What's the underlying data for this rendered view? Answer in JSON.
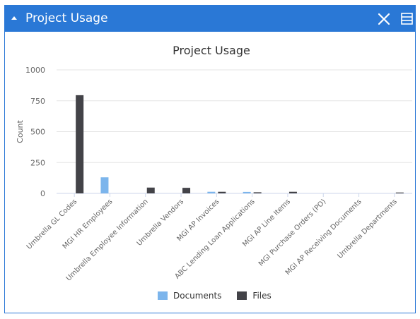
{
  "panel": {
    "title": "Project Usage",
    "icons": {
      "collapse": "caret-up-icon",
      "close": "close-icon",
      "menu": "list-menu-icon"
    },
    "header_color": "#2a78d6"
  },
  "chart_data": {
    "type": "bar",
    "title": "Project Usage",
    "xlabel": "",
    "ylabel": "Count",
    "ylim": [
      0,
      1000
    ],
    "yticks": [
      0,
      250,
      500,
      750,
      1000
    ],
    "grid": true,
    "legend_position": "bottom",
    "categories": [
      "Umbrella GL Codes",
      "MGI HR Employees",
      "Umbrella Employee Information",
      "Umbrella Vendors",
      "MGI AP Invoices",
      "ABC Lending Loan Applications",
      "MGI AP Line Items",
      "MGI Purchase Orders (PO)",
      "MGI AP Receiving Documents",
      "Umbrella Departments"
    ],
    "series": [
      {
        "name": "Documents",
        "color": "#7cb5ec",
        "values": [
          0,
          130,
          0,
          0,
          13,
          12,
          0,
          0,
          0,
          0
        ]
      },
      {
        "name": "Files",
        "color": "#434348",
        "values": [
          795,
          0,
          47,
          45,
          13,
          9,
          13,
          0,
          0,
          7
        ]
      }
    ]
  }
}
